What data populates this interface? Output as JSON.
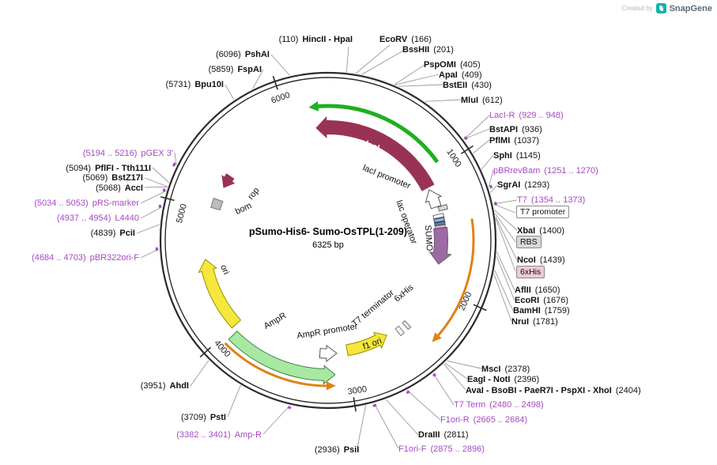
{
  "branding": {
    "created_by": "Created by",
    "app_name": "SnapGene"
  },
  "plasmid": {
    "name": "pSumo-His6- Sumo-OsTPL(1-209)",
    "size": "6325 bp",
    "ticks": [
      "1000",
      "2000",
      "3000",
      "4000",
      "5000",
      "6000"
    ]
  },
  "feature_labels": {
    "lacI": "lacI",
    "lacI_promoter": "lacI promoter",
    "lac_operator": "lac operator",
    "sumo": "SUMO",
    "rop": "rop",
    "bom": "bom",
    "ori": "ori",
    "ampR": "AmpR",
    "ampR_promoter": "AmpR promoter",
    "f1_ori": "f1 ori",
    "t7_terminator": "T7 terminator",
    "his6_inner": "6xHis"
  },
  "boxed_labels": {
    "t7_promoter": "T7 promoter",
    "rbs": "RBS",
    "his6": "6xHis"
  },
  "sites": [
    {
      "p": "(110)",
      "n": "HincII - HpaI"
    },
    {
      "p": "(6096)",
      "n": "PshAI"
    },
    {
      "p": "(5859)",
      "n": "FspAI"
    },
    {
      "p": "(5731)",
      "n": "Bpu10I"
    },
    {
      "p": "(5194 .. 5216)",
      "n": "pGEX 3'"
    },
    {
      "p": "(5094)",
      "n": "PflFI - Tth111I"
    },
    {
      "p": "(5069)",
      "n": "BstZ17I"
    },
    {
      "p": "(5068)",
      "n": "AccI"
    },
    {
      "p": "(5034 .. 5053)",
      "n": "pRS-marker"
    },
    {
      "p": "(4937 .. 4954)",
      "n": "L4440"
    },
    {
      "p": "(4839)",
      "n": "PciI"
    },
    {
      "p": "(4684 .. 4703)",
      "n": "pBR322ori-F"
    },
    {
      "p": "(3951)",
      "n": "AhdI"
    },
    {
      "p": "(3709)",
      "n": "PstI"
    },
    {
      "p": "(3382 .. 3401)",
      "n": "Amp-R"
    },
    {
      "p": "(2936)",
      "n": "PsiI"
    },
    {
      "n": "EcoRV",
      "p": "(166)"
    },
    {
      "n": "BssHII",
      "p": "(201)"
    },
    {
      "n": "PspOMI",
      "p": "(405)"
    },
    {
      "n": "ApaI",
      "p": "(409)"
    },
    {
      "n": "BstEII",
      "p": "(430)"
    },
    {
      "n": "MluI",
      "p": "(612)"
    },
    {
      "n": "LacI-R",
      "p": "(929 .. 948)"
    },
    {
      "n": "BstAPI",
      "p": "(936)"
    },
    {
      "n": "PflMI",
      "p": "(1037)"
    },
    {
      "n": "SphI",
      "p": "(1145)"
    },
    {
      "n": "pBRrevBam",
      "p": "(1251 .. 1270)"
    },
    {
      "n": "SgrAI",
      "p": "(1293)"
    },
    {
      "n": "T7",
      "p": "(1354 .. 1373)"
    },
    {
      "n": "XbaI",
      "p": "(1400)"
    },
    {
      "n": "NcoI",
      "p": "(1439)"
    },
    {
      "n": "AflII",
      "p": "(1650)"
    },
    {
      "n": "EcoRI",
      "p": "(1676)"
    },
    {
      "n": "BamHI",
      "p": "(1759)"
    },
    {
      "n": "NruI",
      "p": "(1781)"
    },
    {
      "n": "MscI",
      "p": "(2378)"
    },
    {
      "n": "EagI - NotI",
      "p": "(2396)"
    },
    {
      "n": "AvaI - BsoBI - PaeR7I - PspXI - XhoI",
      "p": "(2404)"
    },
    {
      "n": "T7 Term",
      "p": "(2480 .. 2498)"
    },
    {
      "n": "F1ori-R",
      "p": "(2665 .. 2684)"
    },
    {
      "n": "DraIII",
      "p": "(2811)"
    },
    {
      "n": "F1ori-F",
      "p": "(2875 .. 2896)"
    }
  ]
}
